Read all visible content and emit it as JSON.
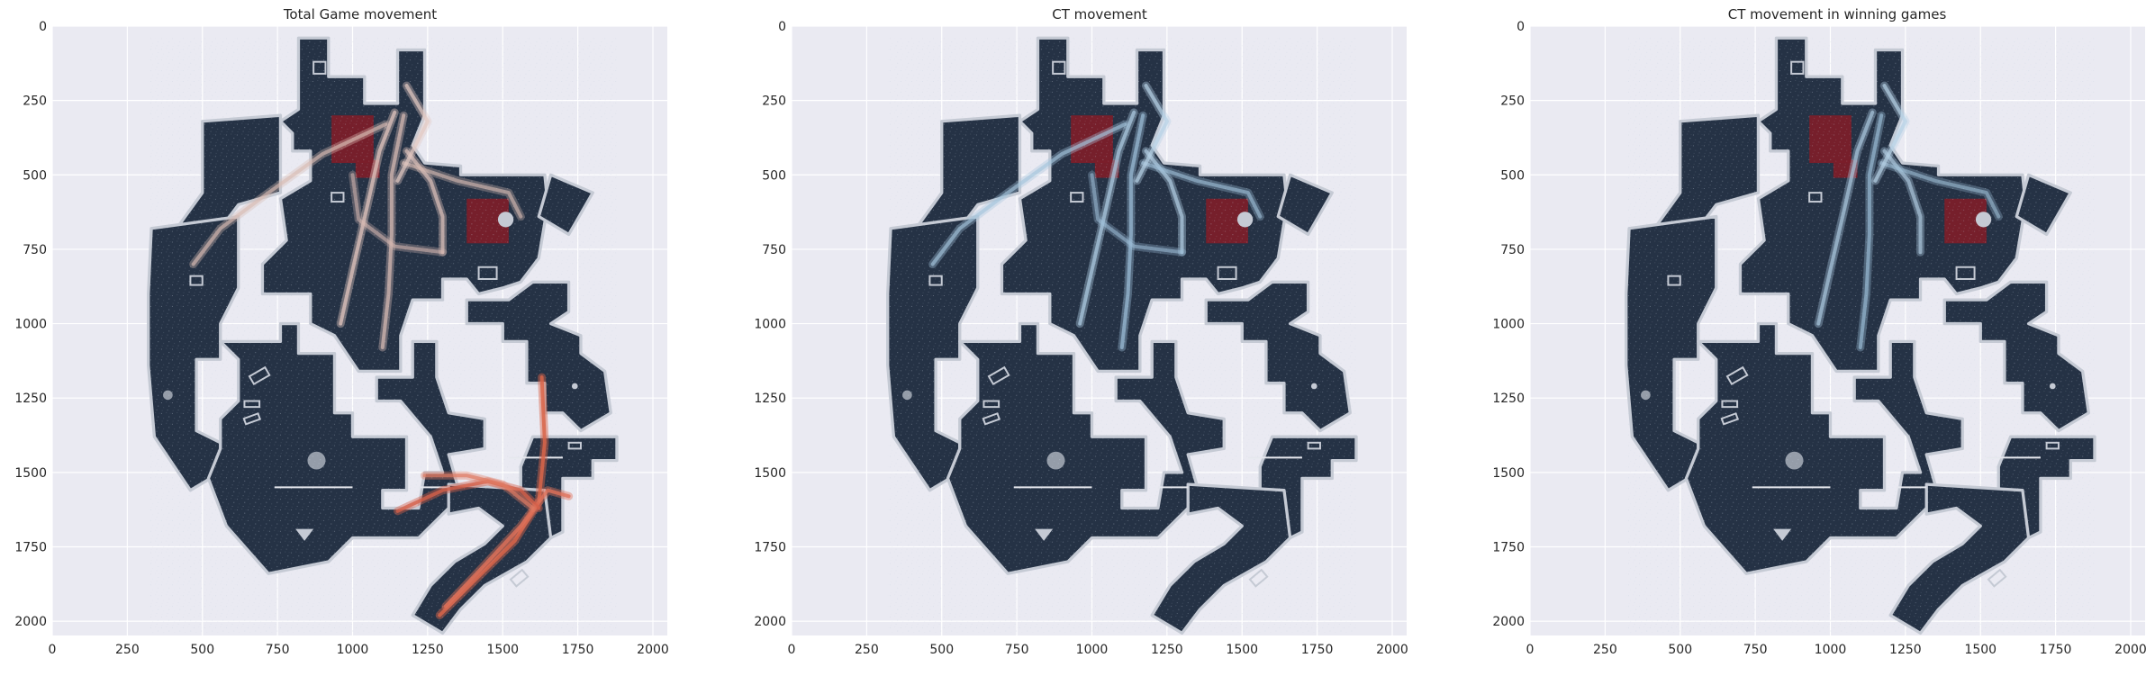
{
  "figure": {
    "background": "#ffffff",
    "axes_facecolor": "#eaeaf2",
    "grid_color": "#ffffff",
    "map_color": "#253245",
    "map_outline": "#c5cad4",
    "bombsite_color": "#7a1f2a"
  },
  "chart_data": [
    {
      "type": "heatmap",
      "title": "Total Game movement",
      "x_ticks": [
        "0",
        "250",
        "500",
        "750",
        "1000",
        "1250",
        "1500",
        "1750",
        "2000"
      ],
      "y_ticks": [
        "0",
        "250",
        "500",
        "750",
        "1000",
        "1250",
        "1500",
        "1750",
        "2000"
      ],
      "xlim": [
        0,
        2048
      ],
      "ylim": [
        2048,
        0
      ],
      "grid": true,
      "trails": [
        {
          "color": "#e0c4bd",
          "opacity": 0.75,
          "points": [
            [
              1140,
              290
            ],
            [
              1090,
              420
            ],
            [
              1050,
              600
            ],
            [
              1000,
              820
            ],
            [
              960,
              1000
            ]
          ]
        },
        {
          "color": "#d8bcb5",
          "opacity": 0.7,
          "points": [
            [
              1170,
              300
            ],
            [
              1130,
              500
            ],
            [
              1130,
              700
            ],
            [
              1120,
              900
            ],
            [
              1100,
              1080
            ]
          ]
        },
        {
          "color": "#d9bcb4",
          "opacity": 0.65,
          "points": [
            [
              1110,
              330
            ],
            [
              900,
              430
            ],
            [
              720,
              560
            ],
            [
              560,
              680
            ],
            [
              470,
              800
            ]
          ]
        },
        {
          "color": "#dcc1ba",
          "opacity": 0.7,
          "points": [
            [
              1180,
              420
            ],
            [
              1260,
              520
            ],
            [
              1300,
              640
            ],
            [
              1300,
              760
            ]
          ]
        },
        {
          "color": "#d9bcb4",
          "opacity": 0.6,
          "points": [
            [
              1170,
              460
            ],
            [
              1350,
              520
            ],
            [
              1520,
              560
            ],
            [
              1560,
              640
            ]
          ]
        },
        {
          "color": "#e3c9c2",
          "opacity": 0.7,
          "points": [
            [
              1180,
              200
            ],
            [
              1250,
              320
            ],
            [
              1200,
              420
            ],
            [
              1150,
              520
            ]
          ]
        },
        {
          "color": "#d8bab2",
          "opacity": 0.55,
          "points": [
            [
              1000,
              500
            ],
            [
              1020,
              650
            ],
            [
              1140,
              740
            ],
            [
              1300,
              760
            ]
          ]
        },
        {
          "color": "#d8654a",
          "opacity": 0.85,
          "points": [
            [
              1290,
              1980
            ],
            [
              1420,
              1850
            ],
            [
              1540,
              1730
            ],
            [
              1620,
              1600
            ],
            [
              1640,
              1400
            ],
            [
              1630,
              1180
            ]
          ]
        },
        {
          "color": "#e0725a",
          "opacity": 0.8,
          "points": [
            [
              1310,
              1950
            ],
            [
              1450,
              1800
            ],
            [
              1560,
              1680
            ],
            [
              1650,
              1560
            ],
            [
              1720,
              1580
            ]
          ]
        },
        {
          "color": "#d4604a",
          "opacity": 0.8,
          "points": [
            [
              1150,
              1630
            ],
            [
              1300,
              1560
            ],
            [
              1450,
              1530
            ],
            [
              1560,
              1560
            ],
            [
              1620,
              1620
            ]
          ]
        },
        {
          "color": "#e07b62",
          "opacity": 0.7,
          "points": [
            [
              1240,
              1510
            ],
            [
              1380,
              1510
            ],
            [
              1500,
              1540
            ],
            [
              1600,
              1620
            ]
          ]
        }
      ]
    },
    {
      "type": "heatmap",
      "title": "CT movement",
      "x_ticks": [
        "0",
        "250",
        "500",
        "750",
        "1000",
        "1250",
        "1500",
        "1750",
        "2000"
      ],
      "y_ticks": [
        "0",
        "250",
        "500",
        "750",
        "1000",
        "1250",
        "1500",
        "1750",
        "2000"
      ],
      "xlim": [
        0,
        2048
      ],
      "ylim": [
        2048,
        0
      ],
      "grid": true,
      "trails": [
        {
          "color": "#a9c7dd",
          "opacity": 0.75,
          "points": [
            [
              1140,
              290
            ],
            [
              1090,
              420
            ],
            [
              1050,
              600
            ],
            [
              1000,
              820
            ],
            [
              960,
              1000
            ]
          ]
        },
        {
          "color": "#9dbfd8",
          "opacity": 0.7,
          "points": [
            [
              1170,
              300
            ],
            [
              1130,
              500
            ],
            [
              1130,
              700
            ],
            [
              1120,
              900
            ],
            [
              1100,
              1080
            ]
          ]
        },
        {
          "color": "#a5c4dc",
          "opacity": 0.65,
          "points": [
            [
              1110,
              330
            ],
            [
              900,
              430
            ],
            [
              720,
              560
            ],
            [
              560,
              680
            ],
            [
              470,
              800
            ]
          ]
        },
        {
          "color": "#b1cde2",
          "opacity": 0.7,
          "points": [
            [
              1180,
              420
            ],
            [
              1260,
              520
            ],
            [
              1300,
              640
            ],
            [
              1300,
              760
            ]
          ]
        },
        {
          "color": "#a2c2da",
          "opacity": 0.6,
          "points": [
            [
              1170,
              460
            ],
            [
              1350,
              520
            ],
            [
              1520,
              560
            ],
            [
              1560,
              640
            ]
          ]
        },
        {
          "color": "#b7d1e5",
          "opacity": 0.7,
          "points": [
            [
              1180,
              200
            ],
            [
              1250,
              320
            ],
            [
              1200,
              420
            ],
            [
              1150,
              520
            ]
          ]
        },
        {
          "color": "#9fc0d9",
          "opacity": 0.55,
          "points": [
            [
              1000,
              500
            ],
            [
              1020,
              650
            ],
            [
              1140,
              740
            ],
            [
              1300,
              760
            ]
          ]
        }
      ]
    },
    {
      "type": "heatmap",
      "title": "CT movement in winning games",
      "x_ticks": [
        "0",
        "250",
        "500",
        "750",
        "1000",
        "1250",
        "1500",
        "1750",
        "2000"
      ],
      "y_ticks": [
        "0",
        "250",
        "500",
        "750",
        "1000",
        "1250",
        "1500",
        "1750",
        "2000"
      ],
      "xlim": [
        0,
        2048
      ],
      "ylim": [
        2048,
        0
      ],
      "grid": true,
      "trails": [
        {
          "color": "#a9c7dd",
          "opacity": 0.7,
          "points": [
            [
              1140,
              290
            ],
            [
              1090,
              420
            ],
            [
              1050,
              600
            ],
            [
              1000,
              820
            ],
            [
              960,
              1000
            ]
          ]
        },
        {
          "color": "#9dbfd8",
          "opacity": 0.65,
          "points": [
            [
              1170,
              300
            ],
            [
              1130,
              500
            ],
            [
              1130,
              700
            ],
            [
              1120,
              900
            ],
            [
              1100,
              1080
            ]
          ]
        },
        {
          "color": "#b1cde2",
          "opacity": 0.65,
          "points": [
            [
              1180,
              420
            ],
            [
              1260,
              520
            ],
            [
              1300,
              640
            ],
            [
              1300,
              760
            ]
          ]
        },
        {
          "color": "#a2c2da",
          "opacity": 0.55,
          "points": [
            [
              1170,
              460
            ],
            [
              1350,
              520
            ],
            [
              1520,
              560
            ],
            [
              1560,
              640
            ]
          ]
        },
        {
          "color": "#b7d1e5",
          "opacity": 0.7,
          "points": [
            [
              1180,
              200
            ],
            [
              1250,
              320
            ],
            [
              1200,
              420
            ],
            [
              1150,
              520
            ]
          ]
        }
      ]
    }
  ]
}
